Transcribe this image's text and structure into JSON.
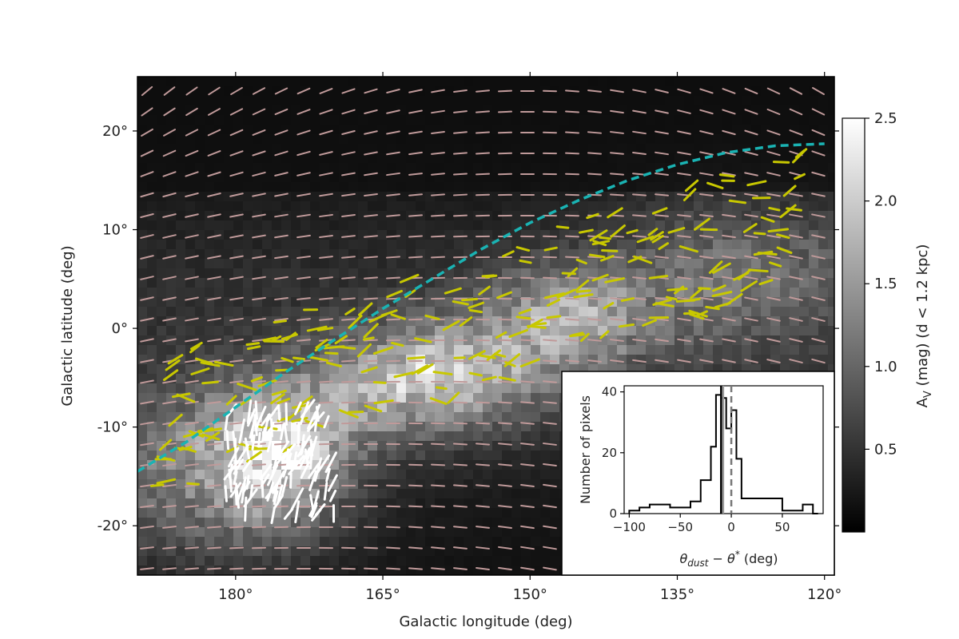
{
  "chart_data": [
    {
      "type": "heatmap",
      "subtype": "sky map with polarization vectors",
      "xlabel": "Galactic longitude (deg)",
      "ylabel": "Galactic latitude (deg)",
      "xlim": [
        190,
        119
      ],
      "ylim": [
        -25,
        25.5
      ],
      "xticks": [
        180,
        165,
        150,
        135,
        120
      ],
      "xtick_labels": [
        "180°",
        "165°",
        "150°",
        "135°",
        "120°"
      ],
      "yticks": [
        20,
        10,
        0,
        -10,
        -20
      ],
      "ytick_labels": [
        "20°",
        "10°",
        "0°",
        "-10°",
        "-20°"
      ],
      "colorbar": {
        "label": "A_V (mag) (d < 1.2 kpc)",
        "label_main": "A",
        "label_sub": "V",
        "label_rest": " (mag) (d < 1.2 kpc)",
        "range": [
          0,
          2.5
        ],
        "ticks": [
          0.5,
          1.0,
          1.5,
          2.0,
          2.5
        ],
        "tick_labels": [
          "0.5",
          "1.0",
          "1.5",
          "2.0",
          "2.5"
        ],
        "colormap": "gray"
      },
      "dust_vector_color": "#c09a9a",
      "starlight_vector_color": "#c8c800",
      "white_vector_color": "#ffffff",
      "curve_color": "#1ab3b3",
      "curve": {
        "style": "dashed",
        "l": [
          190,
          185,
          180,
          175,
          170,
          165,
          160,
          155,
          150,
          145,
          140,
          135,
          130,
          125,
          120
        ],
        "b": [
          -14.5,
          -11.5,
          -8.0,
          -4.5,
          -1.2,
          2.0,
          5.0,
          8.0,
          10.7,
          13.0,
          15.0,
          16.6,
          17.8,
          18.5,
          18.7
        ]
      }
    },
    {
      "type": "histogram",
      "xlabel_main": "θ",
      "xlabel_sub": "dust",
      "xlabel_mid": " − θ",
      "xlabel_sup": "*",
      "xlabel_unit": " (deg)",
      "ylabel": "Number of pixels",
      "xlim": [
        -105,
        90
      ],
      "ylim": [
        0,
        42
      ],
      "xticks": [
        -100,
        -50,
        0,
        50
      ],
      "xtick_labels": [
        "−100",
        "−50",
        "0",
        "50"
      ],
      "yticks": [
        0,
        20,
        40
      ],
      "ytick_labels": [
        "0",
        "20",
        "40"
      ],
      "bin_edges": [
        -100,
        -90,
        -80,
        -70,
        -60,
        -50,
        -40,
        -30,
        -20,
        -15,
        -10,
        -5,
        0,
        5,
        10,
        20,
        30,
        40,
        50,
        60,
        70,
        80,
        85
      ],
      "counts": [
        1,
        2,
        3,
        3,
        2,
        2,
        4,
        11,
        22,
        39,
        38,
        28,
        34,
        18,
        5,
        5,
        5,
        5,
        1,
        1,
        3,
        0
      ],
      "vlines": [
        {
          "x": -10,
          "style": "solid",
          "color": "#000000"
        },
        {
          "x": -8,
          "style": "solid",
          "color": "#999999"
        },
        {
          "x": 0,
          "style": "dashed",
          "color": "#777777"
        }
      ]
    }
  ]
}
